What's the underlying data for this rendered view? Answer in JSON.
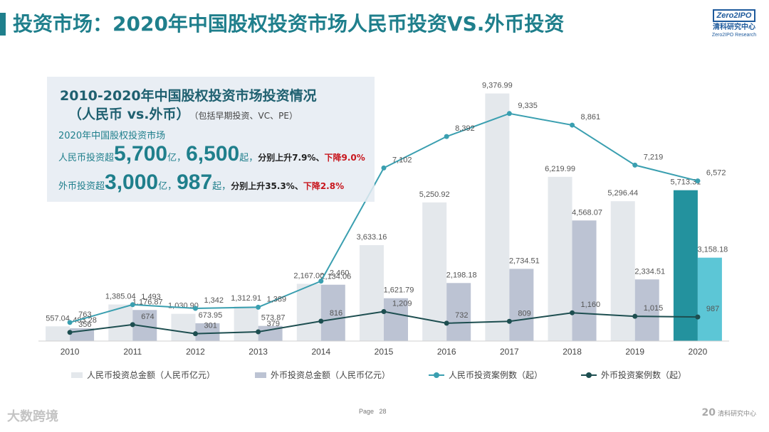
{
  "page": {
    "title": "投资市场：2020年中国股权投资市场人民币投资VS.外币投资",
    "page_label": "Page",
    "page_number": "28",
    "watermark": "大数跨境",
    "footer_logo_year": "20",
    "footer_logo_text": "清科研究中心"
  },
  "logo": {
    "box_text": "Zero2IPO",
    "cn": "清科研究中心",
    "en": "Zero2IPO Research"
  },
  "info": {
    "title": "2010-2020年中国股权投资市场投资情况",
    "subtitle_big": "（人民币 vs.外币）",
    "subtitle_small": "（包括早期投资、VC、PE）",
    "market": "2020年中国股权投资市场",
    "rmb": {
      "prefix": "人民币投资超",
      "amount": "5,700",
      "amount_unit": "亿，",
      "cases": "6,500",
      "cases_unit": "起，",
      "change": "分别上升7.9%、",
      "decline": "下降9.0%"
    },
    "fx": {
      "prefix": "外币投资超",
      "amount": "3,000",
      "amount_unit": "亿，",
      "cases": "987",
      "cases_unit": "起，",
      "change": "分别上升35.3%、",
      "decline": "下降2.8%"
    }
  },
  "colors": {
    "rmb_bar": "#e4e8ec",
    "fx_bar": "#bcc3d3",
    "rmb_bar_2020": "#23929e",
    "fx_bar_2020": "#5cc6d6",
    "rmb_line": "#3a9fb0",
    "fx_line": "#1d4e50",
    "title": "#1f7f8c",
    "red": "#c8161d"
  },
  "chart_data": {
    "type": "bar",
    "categories": [
      "2010",
      "2011",
      "2012",
      "2013",
      "2014",
      "2015",
      "2016",
      "2017",
      "2018",
      "2019",
      "2020"
    ],
    "series": [
      {
        "name": "人民币投资总金额（人民币亿元）",
        "kind": "bar",
        "axis": "left",
        "values": [
          557.04,
          1385.04,
          1030.9,
          1312.91,
          2167.0,
          3633.16,
          5250.92,
          9376.99,
          6219.99,
          5296.44,
          5713.31
        ],
        "labels": [
          "557.04",
          "1,385.04",
          "1,030.90",
          "1,312.91",
          "2,167.00",
          "3,633.16",
          "5,250.92",
          "9,376.99",
          "6,219.99",
          "5,296.44",
          "5,713.31"
        ]
      },
      {
        "name": "外币投资总金额（人民币亿元）",
        "kind": "bar",
        "axis": "left",
        "values": [
          483.28,
          1176.87,
          673.95,
          573.87,
          2134.06,
          1621.79,
          2198.18,
          2734.51,
          4568.07,
          2334.51,
          3158.18
        ],
        "labels": [
          "483.28",
          "1,176.87",
          "673.95",
          "573.87",
          "2,134.06",
          "1,621.79",
          "2,198.18",
          "2,734.51",
          "4,568.07",
          "2,334.51",
          "3,158.18"
        ]
      },
      {
        "name": "人民币投资案例数（起）",
        "kind": "line",
        "axis": "right",
        "values": [
          763,
          1493,
          1342,
          1389,
          2460,
          7102,
          8392,
          9335,
          8861,
          7219,
          6572
        ],
        "labels": [
          "763",
          "1,493",
          "1,342",
          "1,389",
          "2,460",
          "7,102",
          "8,392",
          "9,335",
          "8,861",
          "7,219",
          "6,572"
        ]
      },
      {
        "name": "外币投资案例数（起）",
        "kind": "line",
        "axis": "right",
        "values": [
          356,
          674,
          301,
          379,
          816,
          1209,
          732,
          809,
          1160,
          1015,
          987
        ],
        "labels": [
          "356",
          "674",
          "301",
          "379",
          "816",
          "1,209",
          "732",
          "809",
          "1,160",
          "1,015",
          "987"
        ]
      }
    ],
    "ylim_left": [
      0,
      10000
    ],
    "ylim_right": [
      0,
      10000
    ],
    "xlabel": "",
    "ylabel": "",
    "legend_position": "bottom",
    "grid": false
  }
}
